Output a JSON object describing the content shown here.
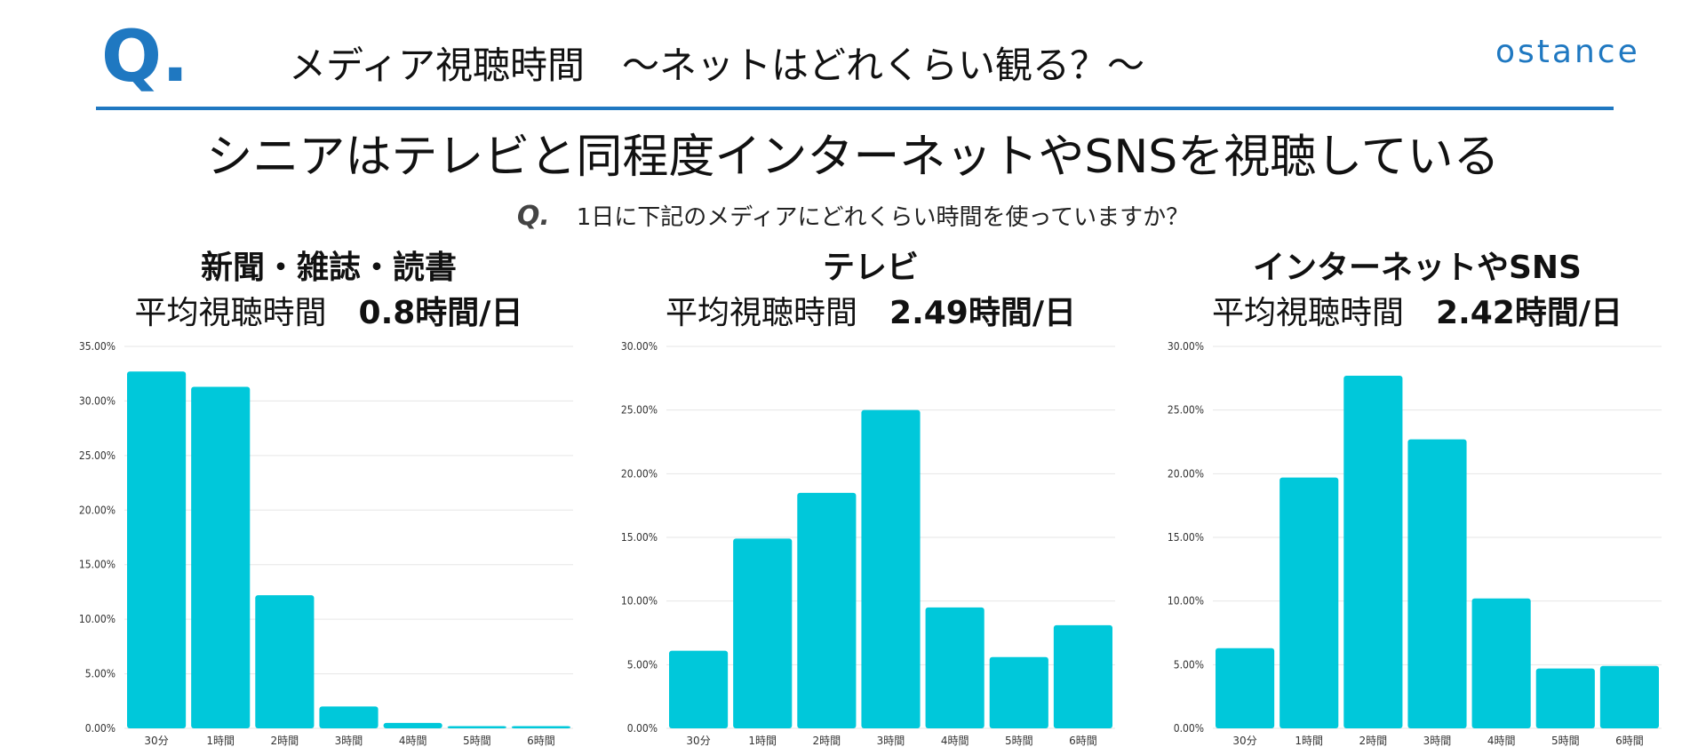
{
  "header": {
    "logo_mark": "Q.",
    "title": "メディア視聴時間　～ネットはどれくらい観る？～",
    "brand": "ostance"
  },
  "headline": "シニアはテレビと同程度インターネットやSNSを視聴している",
  "question": {
    "mark": "Q.",
    "text": "1日に下記のメディアにどれくらい時間を使っていますか？"
  },
  "colors": {
    "accent": "#1f78c1",
    "bar": "#00c8da"
  },
  "chart_data": [
    {
      "type": "bar",
      "title": "新聞・雑誌・読書",
      "avg_label": "平均視聴時間",
      "avg_value": "0.8時間/日",
      "categories": [
        "30分",
        "1時間",
        "2時間",
        "3時間",
        "4時間",
        "5時間",
        "6時間"
      ],
      "values": [
        32.7,
        31.3,
        12.2,
        2.0,
        0.5,
        0.2,
        0.2
      ],
      "ylim": [
        0,
        35
      ],
      "yticks": [
        "0.00%",
        "5.00%",
        "10.00%",
        "15.00%",
        "20.00%",
        "25.00%",
        "30.00%",
        "35.00%"
      ],
      "grid": true
    },
    {
      "type": "bar",
      "title": "テレビ",
      "avg_label": "平均視聴時間",
      "avg_value": "2.49時間/日",
      "categories": [
        "30分",
        "1時間",
        "2時間",
        "3時間",
        "4時間",
        "5時間",
        "6時間"
      ],
      "values": [
        6.1,
        14.9,
        18.5,
        25.0,
        9.5,
        5.6,
        8.1
      ],
      "ylim": [
        0,
        30
      ],
      "yticks": [
        "0.00%",
        "5.00%",
        "10.00%",
        "15.00%",
        "20.00%",
        "25.00%",
        "30.00%"
      ],
      "grid": true
    },
    {
      "type": "bar",
      "title": "インターネットやSNS",
      "avg_label": "平均視聴時間",
      "avg_value": "2.42時間/日",
      "categories": [
        "30分",
        "1時間",
        "2時間",
        "3時間",
        "4時間",
        "5時間",
        "6時間"
      ],
      "values": [
        6.3,
        19.7,
        27.7,
        22.7,
        10.2,
        4.7,
        4.9
      ],
      "ylim": [
        0,
        30
      ],
      "yticks": [
        "0.00%",
        "5.00%",
        "10.00%",
        "15.00%",
        "20.00%",
        "25.00%",
        "30.00%"
      ],
      "grid": true
    }
  ]
}
